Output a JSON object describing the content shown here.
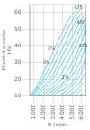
{
  "chart_data": {
    "type": "line",
    "xlabel": "N (rpm)",
    "ylabel": "Effectivit pression\n(kPa)",
    "xlim": [
      500,
      6500
    ],
    "ylim": [
      10,
      65
    ],
    "xticks": [
      {
        "value": 1000,
        "label": "1 000"
      },
      {
        "value": 2000,
        "label": "2 000"
      },
      {
        "value": 3000,
        "label": "3 000"
      },
      {
        "value": 4000,
        "label": "4 000"
      },
      {
        "value": 5000,
        "label": "5 000"
      },
      {
        "value": 6000,
        "label": "6 000"
      }
    ],
    "yticks": [
      10,
      20,
      30,
      40,
      50,
      60
    ],
    "grid": true,
    "color": "#66ccee",
    "series": [
      {
        "x": [
          600,
          1000,
          1500,
          2000,
          2800,
          3800,
          4800,
          5600
        ],
        "values": [
          10,
          13,
          18,
          24,
          34,
          46,
          57,
          63
        ]
      },
      {
        "x": [
          700,
          1100,
          1700,
          2300,
          3100,
          4100,
          5100,
          5900
        ],
        "values": [
          10,
          13,
          18,
          24,
          33,
          45,
          56,
          62
        ]
      },
      {
        "x": [
          900,
          1300,
          1900,
          2600,
          3400,
          4400,
          5300,
          6100
        ],
        "values": [
          10,
          13,
          18,
          23,
          32,
          43,
          54,
          60
        ]
      },
      {
        "x": [
          1100,
          1600,
          2200,
          2900,
          3700,
          4700,
          5600,
          6200
        ],
        "values": [
          10,
          13,
          17,
          22,
          31,
          42,
          52,
          58
        ]
      },
      {
        "x": [
          1300,
          1900,
          2500,
          3200,
          4000,
          5000,
          5800,
          6300
        ],
        "values": [
          10,
          13,
          17,
          22,
          30,
          40,
          50,
          56
        ]
      },
      {
        "x": [
          1600,
          2200,
          2900,
          3600,
          4400,
          5300,
          6000,
          6400
        ],
        "values": [
          10,
          13,
          17,
          21,
          29,
          39,
          48,
          54
        ]
      },
      {
        "x": [
          1900,
          2500,
          3200,
          4000,
          4800,
          5600,
          6200,
          6450
        ],
        "values": [
          10,
          13,
          16,
          21,
          28,
          37,
          46,
          52
        ]
      },
      {
        "x": [
          2200,
          2900,
          3600,
          4400,
          5100,
          5800,
          6350,
          6480
        ],
        "values": [
          10,
          13,
          16,
          20,
          27,
          36,
          44,
          50
        ]
      },
      {
        "x": [
          2600,
          3300,
          4000,
          4700,
          5400,
          6100,
          6450
        ],
        "values": [
          10,
          13,
          16,
          20,
          26,
          34,
          42
        ]
      },
      {
        "x": [
          3000,
          3700,
          4400,
          5100,
          5700,
          6300,
          6480
        ],
        "values": [
          10,
          13,
          15,
          19,
          25,
          32,
          40
        ]
      },
      {
        "x": [
          3500,
          4100,
          4800,
          5400,
          6000,
          6450
        ],
        "values": [
          10,
          12,
          15,
          19,
          24,
          30
        ]
      },
      {
        "x": [
          4000,
          4600,
          5200,
          5800,
          6300
        ],
        "values": [
          10,
          12,
          15,
          18,
          23
        ]
      },
      {
        "x": [
          4600,
          5100,
          5600,
          6100
        ],
        "values": [
          10,
          12,
          14,
          18
        ]
      },
      {
        "x": [
          5200,
          5600,
          6000
        ],
        "values": [
          10,
          12,
          14
        ]
      },
      {
        "x": [
          5800,
          6100
        ],
        "values": [
          10,
          12
        ]
      }
    ],
    "annotations": [
      {
        "text": "475",
        "x": 5650,
        "y": 63,
        "color": "#444444"
      },
      {
        "text": "400",
        "x": 5950,
        "y": 54,
        "color": "#444444"
      },
      {
        "text": "375",
        "x": 6150,
        "y": 40,
        "color": "#444444"
      },
      {
        "text": "2%",
        "x": 2800,
        "y": 38,
        "color": "#555555"
      },
      {
        "text": "3%",
        "x": 2300,
        "y": 30,
        "color": "#555555"
      },
      {
        "text": "2%",
        "x": 4300,
        "y": 21,
        "color": "#555555"
      }
    ]
  }
}
